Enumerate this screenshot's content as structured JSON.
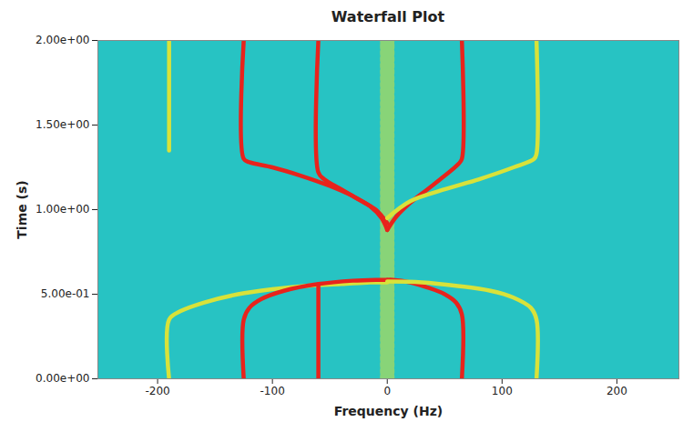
{
  "chart_data": {
    "type": "waterfall",
    "title": "Waterfall Plot",
    "x_label": "Frequency (Hz)",
    "y_label": "Time (s)",
    "xlim": [
      -252,
      254
    ],
    "xticks": [
      -200,
      -100,
      0,
      100,
      200
    ],
    "ylim": [
      0,
      2
    ],
    "yticks": [
      {
        "value": 0,
        "label": "0.00e+00"
      },
      {
        "value": 0.5,
        "label": "5.00e-01"
      },
      {
        "value": 1,
        "label": "1.00e+00"
      },
      {
        "value": 1.5,
        "label": "1.50e+00"
      },
      {
        "value": 2,
        "label": "2.00e+00"
      }
    ],
    "grid": false,
    "series": [
      {
        "color": "#d8e23a",
        "line_style": "dotted",
        "x": [
          0,
          0
        ],
        "y": [
          0,
          2
        ]
      },
      {
        "color": "#d8e23a",
        "x": [
          -190,
          -190,
          -180,
          -160,
          -130,
          -100,
          -70,
          -40,
          -15,
          0
        ],
        "y": [
          0,
          0.35,
          0.4,
          0.45,
          0.5,
          0.53,
          0.55,
          0.56,
          0.57,
          0.57
        ]
      },
      {
        "color": "#e8231c",
        "x": [
          -125,
          -125,
          -120,
          -110,
          -90,
          -60,
          -30,
          -10,
          0
        ],
        "y": [
          0,
          0.35,
          0.42,
          0.47,
          0.52,
          0.56,
          0.58,
          0.585,
          0.585
        ]
      },
      {
        "color": "#e8231c",
        "x": [
          -60,
          -60
        ],
        "y": [
          0,
          0.55
        ]
      },
      {
        "color": "#e8231c",
        "x": [
          65,
          65,
          60,
          50,
          35,
          20,
          5,
          0
        ],
        "y": [
          0,
          0.38,
          0.45,
          0.5,
          0.54,
          0.57,
          0.585,
          0.585
        ]
      },
      {
        "color": "#d8e23a",
        "x": [
          130,
          130,
          125,
          110,
          90,
          60,
          30,
          0
        ],
        "y": [
          0,
          0.35,
          0.42,
          0.48,
          0.52,
          0.55,
          0.57,
          0.575
        ]
      },
      {
        "color": "#e8231c",
        "x": [
          0,
          -5,
          -15,
          -30,
          -50,
          -75,
          -100,
          -120,
          -125,
          -125
        ],
        "y": [
          0.88,
          0.95,
          1.02,
          1.08,
          1.14,
          1.2,
          1.25,
          1.28,
          1.3,
          2
        ]
      },
      {
        "color": "#e8231c",
        "x": [
          0,
          -10,
          -25,
          -40,
          -55,
          -60,
          -60
        ],
        "y": [
          0.92,
          1.0,
          1.06,
          1.12,
          1.18,
          1.22,
          2
        ]
      },
      {
        "color": "#e8231c",
        "x": [
          0,
          8,
          20,
          35,
          50,
          62,
          65,
          65
        ],
        "y": [
          0.88,
          0.96,
          1.04,
          1.12,
          1.2,
          1.27,
          1.3,
          2
        ]
      },
      {
        "color": "#d8e23a",
        "x": [
          0,
          20,
          50,
          80,
          110,
          128,
          130,
          130
        ],
        "y": [
          0.95,
          1.05,
          1.12,
          1.18,
          1.25,
          1.3,
          1.33,
          2
        ]
      },
      {
        "color": "#d8e23a",
        "x": [
          -190,
          -190
        ],
        "y": [
          1.35,
          2
        ]
      }
    ]
  }
}
